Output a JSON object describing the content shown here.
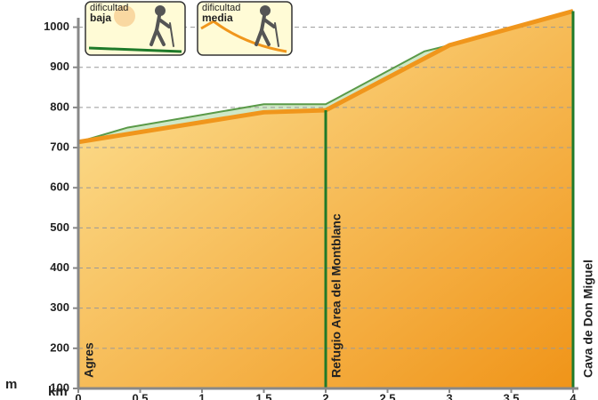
{
  "chart_data": {
    "type": "area",
    "y_label": "m",
    "x_label": "km",
    "xlim": [
      0,
      4
    ],
    "ylim": [
      100,
      1050
    ],
    "xticks": [
      0,
      {
        "value": 0.5,
        "label": "0,5"
      },
      1,
      {
        "value": 1.5,
        "label": "1,5"
      },
      2,
      {
        "value": 2.5,
        "label": "2,5"
      },
      3,
      {
        "value": 3.5,
        "label": "3,5"
      },
      4
    ],
    "yticks": [
      100,
      200,
      300,
      400,
      500,
      600,
      700,
      800,
      900,
      1000
    ],
    "grid": true,
    "series": [
      {
        "color": "#5a9a48",
        "fill": "#cfe8c6",
        "x": [
          0,
          0.4,
          1.5,
          2,
          2.8,
          3,
          4
        ],
        "values": [
          714,
          750,
          808,
          808,
          940,
          955,
          1040
        ]
      },
      {
        "color": "#f0961c",
        "x": [
          0,
          1.5,
          2,
          3,
          4
        ],
        "values": [
          714,
          788,
          793,
          955,
          1040
        ]
      }
    ],
    "waypoints": [
      {
        "x": 0,
        "label": "Agres"
      },
      {
        "x": 2,
        "label": "Refugio Area del Montblanc"
      },
      {
        "x": 4,
        "label": "Cava de Don Miguel"
      }
    ],
    "badges": [
      {
        "word": "dificultad",
        "level": "baja"
      },
      {
        "word": "dificultad",
        "level": "media"
      }
    ]
  }
}
